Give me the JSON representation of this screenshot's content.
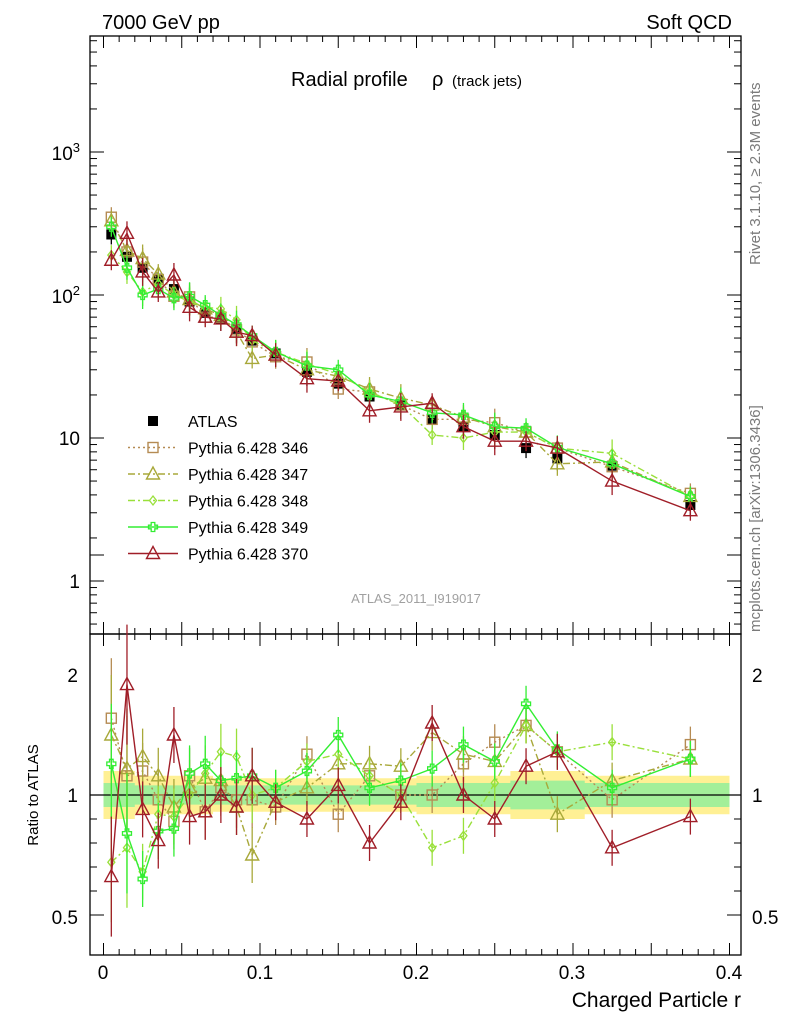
{
  "header": {
    "left": "7000 GeV pp",
    "right": "Soft QCD"
  },
  "side": {
    "top": "Rivet 3.1.10, ≥ 2.3M events",
    "bottom": "mcplots.cern.ch [arXiv:1306.3436]"
  },
  "chart_data": [
    {
      "type": "line",
      "title": "Radial profile",
      "title_symbol": "ρ",
      "subtitle": "(track jets)",
      "annotation": "ATLAS_2011_I919017",
      "yscale": "log",
      "ylim": [
        0.4,
        7000
      ],
      "xlim": [
        -0.005,
        0.405
      ],
      "y_ticks": [
        "1",
        "10",
        "10^2",
        "10^3"
      ],
      "legend_position": "left-center",
      "x": [
        0.005,
        0.015,
        0.025,
        0.035,
        0.045,
        0.055,
        0.065,
        0.075,
        0.085,
        0.095,
        0.11,
        0.13,
        0.15,
        0.17,
        0.19,
        0.21,
        0.23,
        0.25,
        0.27,
        0.29,
        0.325,
        0.375
      ],
      "series": [
        {
          "name": "ATLAS",
          "color": "#000000",
          "marker": "square-filled",
          "line": "none",
          "values": [
            265,
            185,
            155,
            130,
            110,
            90,
            75,
            68,
            58,
            48,
            39,
            29,
            24,
            19.5,
            17,
            13.5,
            12,
            10.5,
            8.5,
            7.2,
            6.4,
            3.4
          ]
        },
        {
          "name": "Pythia 6.428 346",
          "color": "#b58b53",
          "marker": "square-open",
          "line": "dotted",
          "values": [
            350,
            200,
            170,
            128,
            98,
            97,
            70,
            70,
            57,
            47,
            37,
            34,
            22,
            21,
            17,
            13.5,
            13.5,
            12.8,
            11,
            8.5,
            6.3,
            4.1
          ]
        },
        {
          "name": "Pythia 6.428 347",
          "color": "#a8a83a",
          "marker": "triangle-open",
          "line": "dashdot",
          "values": [
            330,
            205,
            180,
            140,
            105,
            93,
            80,
            72,
            55,
            36,
            38,
            30,
            27,
            22,
            19,
            17,
            14,
            12,
            11,
            6.6,
            6.8,
            3.9
          ]
        },
        {
          "name": "Pythia 6.428 348",
          "color": "#99e03a",
          "marker": "diamond-open",
          "line": "dashdot",
          "values": [
            190,
            145,
            105,
            120,
            100,
            90,
            82,
            80,
            67,
            48,
            40,
            33,
            28,
            21,
            17,
            10.5,
            10,
            11,
            11,
            8.5,
            7.8,
            3.9
          ]
        },
        {
          "name": "Pythia 6.428 349",
          "color": "#33ee33",
          "marker": "cross-open",
          "line": "solid",
          "values": [
            300,
            155,
            100,
            110,
            95,
            98,
            85,
            72,
            62,
            52,
            40,
            32,
            30,
            20,
            18,
            15,
            14.5,
            12,
            11.7,
            8.6,
            6.6,
            3.9
          ]
        },
        {
          "name": "Pythia 6.428 370",
          "color": "#a01e28",
          "marker": "triangle-open",
          "line": "solid",
          "values": [
            175,
            270,
            145,
            105,
            138,
            82,
            70,
            68,
            55,
            52,
            38,
            26,
            25,
            15.5,
            16.5,
            17.5,
            12,
            9.5,
            9.5,
            8.5,
            5,
            3.1
          ]
        }
      ]
    },
    {
      "type": "line",
      "xlabel": "Charged Particle r",
      "ylabel": "Ratio to ATLAS",
      "ylim": [
        0.4,
        2.3
      ],
      "y_ticks": [
        "0.5",
        "1",
        "2"
      ],
      "x_ticks": [
        "0",
        "0.1",
        "0.2",
        "0.3",
        "0.4"
      ],
      "reference_line": 1,
      "band_inner": [
        0.05,
        0.05,
        0.04,
        0.04,
        0.04,
        0.04,
        0.04,
        0.04,
        0.04,
        0.04,
        0.04,
        0.04,
        0.04,
        0.04,
        0.04,
        0.05,
        0.05,
        0.05,
        0.06,
        0.06,
        0.05,
        0.05
      ],
      "band_outer": [
        0.1,
        0.1,
        0.08,
        0.08,
        0.08,
        0.08,
        0.08,
        0.07,
        0.07,
        0.07,
        0.07,
        0.07,
        0.07,
        0.07,
        0.07,
        0.08,
        0.08,
        0.08,
        0.1,
        0.1,
        0.08,
        0.08
      ],
      "series_ratios": [
        [
          1.32,
          1.08,
          1.1,
          0.98,
          0.89,
          1.08,
          0.93,
          1.03,
          0.98,
          0.98,
          0.95,
          1.17,
          0.92,
          1.08,
          1.0,
          1.0,
          1.13,
          1.22,
          1.29,
          1.18,
          0.98,
          1.21
        ],
        [
          1.25,
          1.11,
          1.16,
          1.08,
          0.95,
          1.03,
          1.07,
          1.06,
          0.95,
          0.75,
          0.97,
          1.03,
          1.13,
          1.13,
          1.12,
          1.26,
          1.17,
          1.14,
          1.29,
          0.92,
          1.06,
          1.15
        ],
        [
          0.72,
          0.78,
          0.68,
          0.92,
          0.91,
          1.0,
          1.09,
          1.18,
          1.16,
          1.0,
          1.03,
          1.14,
          1.17,
          1.08,
          1.0,
          0.78,
          0.83,
          1.05,
          1.29,
          1.18,
          1.22,
          1.15
        ],
        [
          1.13,
          0.84,
          0.65,
          0.85,
          0.86,
          1.09,
          1.13,
          1.06,
          1.07,
          1.08,
          1.03,
          1.1,
          1.25,
          1.03,
          1.06,
          1.11,
          1.21,
          1.14,
          1.38,
          1.19,
          1.03,
          1.15
        ],
        [
          0.66,
          1.46,
          0.94,
          0.81,
          1.25,
          0.91,
          0.93,
          1.0,
          0.95,
          1.08,
          0.97,
          0.9,
          1.04,
          0.8,
          0.97,
          1.3,
          1.0,
          0.9,
          1.12,
          1.18,
          0.78,
          0.91
        ]
      ]
    }
  ]
}
